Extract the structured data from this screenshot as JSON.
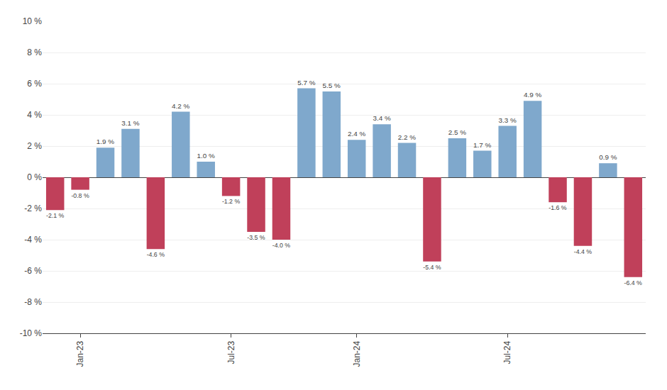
{
  "chart_data": {
    "type": "bar",
    "categories": [
      null,
      "Jan-23",
      null,
      null,
      null,
      null,
      null,
      "Jul-23",
      null,
      null,
      null,
      null,
      "Jan-24",
      null,
      null,
      null,
      null,
      null,
      "Jul-24",
      null,
      null,
      null,
      null,
      null
    ],
    "values": [
      -2.1,
      -0.8,
      1.9,
      3.1,
      -4.6,
      4.2,
      1.0,
      -1.2,
      -3.5,
      -4.0,
      5.7,
      5.5,
      2.4,
      3.4,
      2.2,
      -5.4,
      2.5,
      1.7,
      3.3,
      4.9,
      -1.6,
      -4.4,
      0.9,
      -6.4
    ],
    "value_labels": [
      "-2.1 %",
      "-0.8 %",
      "1.9 %",
      "3.1 %",
      "-4.6 %",
      "4.2 %",
      "1.0 %",
      "-1.2 %",
      "-3.5 %",
      "-4.0 %",
      "5.7 %",
      "5.5 %",
      "2.4 %",
      "3.4 %",
      "2.2 %",
      "-5.4 %",
      "2.5 %",
      "1.7 %",
      "3.3 %",
      "4.9 %",
      "-1.6 %",
      "-4.4 %",
      "0.9 %",
      "-6.4 %"
    ],
    "colors": [
      "#c0405a",
      "#c0405a",
      "#7fa8cc",
      "#7fa8cc",
      "#c0405a",
      "#7fa8cc",
      "#7fa8cc",
      "#c0405a",
      "#c0405a",
      "#c0405a",
      "#7fa8cc",
      "#7fa8cc",
      "#7fa8cc",
      "#7fa8cc",
      "#7fa8cc",
      "#c0405a",
      "#7fa8cc",
      "#7fa8cc",
      "#7fa8cc",
      "#7fa8cc",
      "#c0405a",
      "#c0405a",
      "#7fa8cc",
      "#c0405a"
    ],
    "ylim": [
      -10,
      10
    ],
    "yticks": [
      {
        "value": -10,
        "label": "-10 %"
      },
      {
        "value": -8,
        "label": "-8 %"
      },
      {
        "value": -6,
        "label": "-6 %"
      },
      {
        "value": -4,
        "label": "-4 %"
      },
      {
        "value": -2,
        "label": "-2 %"
      },
      {
        "value": 0,
        "label": "0 %"
      },
      {
        "value": 2,
        "label": "2 %"
      },
      {
        "value": 4,
        "label": "4 %"
      },
      {
        "value": 6,
        "label": "6 %"
      },
      {
        "value": 8,
        "label": "8 %"
      },
      {
        "value": 10,
        "label": "10 %"
      }
    ],
    "grid": true,
    "data_labels": true
  }
}
